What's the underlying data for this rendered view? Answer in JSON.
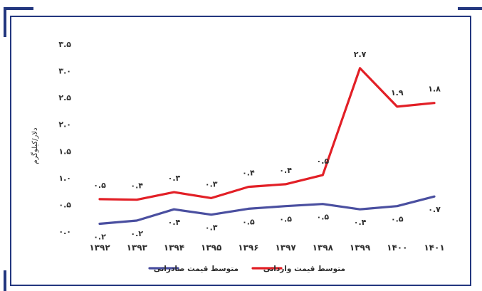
{
  "chart_data": {
    "type": "line",
    "categories": [
      "۱۳۹۲",
      "۱۳۹۳",
      "۱۳۹۴",
      "۱۳۹۵",
      "۱۳۹۶",
      "۱۳۹۷",
      "۱۳۹۸",
      "۱۳۹۹",
      "۱۴۰۰",
      "۱۴۰۱"
    ],
    "ylabel": "دلار/کیلوگرم",
    "ylim": [
      0,
      3.5
    ],
    "yticks": [
      0,
      0.5,
      1,
      1.5,
      2,
      2.5,
      3,
      3.5
    ],
    "ytick_labels": [
      "۰.۰",
      "۰.۵",
      "۱.۰",
      "۱.۵",
      "۲.۰",
      "۲.۵",
      "۳.۰",
      "۳.۵"
    ],
    "grid": false,
    "legend_position": "bottom",
    "series": [
      {
        "name": "متوسط قیمت وارداتی",
        "color": "#e21f26",
        "values": [
          0.6,
          0.59,
          0.73,
          0.62,
          0.83,
          0.88,
          1.05,
          3.05,
          2.33,
          2.4
        ],
        "labels": [
          "۰.۵",
          "۰.۴",
          "۰.۳",
          "۰.۳",
          "۰.۴",
          "۰.۴",
          "۰.۵",
          "۲.۷",
          "۱.۹",
          "۱.۸"
        ],
        "label_side": "above"
      },
      {
        "name": "متوسط قیمت صادراتی",
        "color": "#4a4fa0",
        "values": [
          0.14,
          0.2,
          0.41,
          0.31,
          0.42,
          0.47,
          0.51,
          0.41,
          0.47,
          0.65
        ],
        "labels": [
          "۰.۲",
          "۰.۲",
          "۰.۴",
          "۰.۳",
          "۰.۵",
          "۰.۵",
          "۰.۵",
          "۰.۴",
          "۰.۵",
          "۰.۷"
        ],
        "label_side": "below"
      }
    ]
  }
}
